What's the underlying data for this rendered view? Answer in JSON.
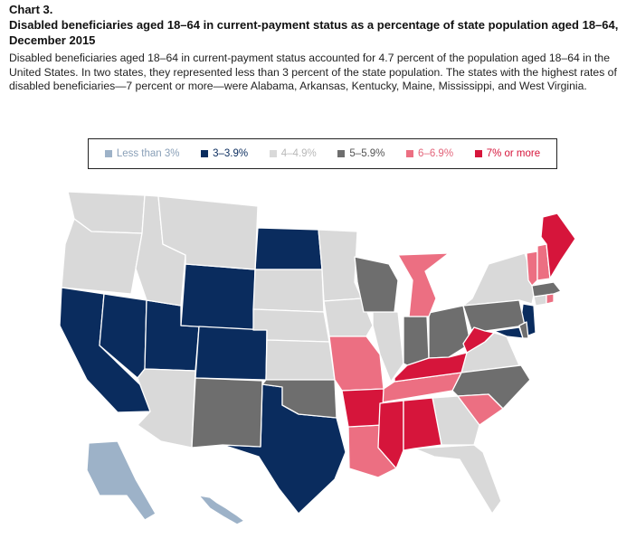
{
  "header": {
    "chart_number": "Chart 3.",
    "title": "Disabled beneficiaries aged 18–64 in current-payment status as a percentage of state population aged 18–64, December 2015",
    "description": "Disabled beneficiaries aged 18–64 in current-payment status accounted for 4.7 percent of the population aged 18–64 in the United States. In two states, they represented less than 3 percent of the state population. The states with the highest rates of disabled beneficiaries—7 percent or more—were Alabama, Arkansas, Kentucky, Maine, Mississippi, and West Virginia."
  },
  "legend": [
    {
      "label": "Less than 3%",
      "color": "#9db2c8",
      "text_color": "#8aa0b8"
    },
    {
      "label": "3–3.9%",
      "color": "#0a2c5e",
      "text_color": "#0a2c5e"
    },
    {
      "label": "4–4.9%",
      "color": "#d9d9d9",
      "text_color": "#b8b8b8"
    },
    {
      "label": "5–5.9%",
      "color": "#6e6e6e",
      "text_color": "#555555"
    },
    {
      "label": "6–6.9%",
      "color": "#ec6f82",
      "text_color": "#e3647a"
    },
    {
      "label": "7% or more",
      "color": "#d6153b",
      "text_color": "#d6153b"
    }
  ],
  "map_data": {
    "classes": {
      "lt3": "#9db2c8",
      "c3": "#0a2c5e",
      "c4": "#d9d9d9",
      "c5": "#6e6e6e",
      "c6": "#ec6f82",
      "c7": "#d6153b"
    },
    "states": [
      {
        "state": "Alaska",
        "class": "lt3"
      },
      {
        "state": "Hawaii",
        "class": "lt3"
      },
      {
        "state": "California",
        "class": "c3"
      },
      {
        "state": "Nevada",
        "class": "c3"
      },
      {
        "state": "Utah",
        "class": "c3"
      },
      {
        "state": "Wyoming",
        "class": "c3"
      },
      {
        "state": "Colorado",
        "class": "c3"
      },
      {
        "state": "North Dakota",
        "class": "c3"
      },
      {
        "state": "Texas",
        "class": "c3"
      },
      {
        "state": "New Jersey",
        "class": "c3"
      },
      {
        "state": "Maryland",
        "class": "c3"
      },
      {
        "state": "Washington",
        "class": "c4"
      },
      {
        "state": "Oregon",
        "class": "c4"
      },
      {
        "state": "Idaho",
        "class": "c4"
      },
      {
        "state": "Montana",
        "class": "c4"
      },
      {
        "state": "Arizona",
        "class": "c4"
      },
      {
        "state": "South Dakota",
        "class": "c4"
      },
      {
        "state": "Nebraska",
        "class": "c4"
      },
      {
        "state": "Kansas",
        "class": "c4"
      },
      {
        "state": "Minnesota",
        "class": "c4"
      },
      {
        "state": "Iowa",
        "class": "c4"
      },
      {
        "state": "Illinois",
        "class": "c4"
      },
      {
        "state": "New York",
        "class": "c4"
      },
      {
        "state": "Virginia",
        "class": "c4"
      },
      {
        "state": "Georgia",
        "class": "c4"
      },
      {
        "state": "Florida",
        "class": "c4"
      },
      {
        "state": "Connecticut",
        "class": "c4"
      },
      {
        "state": "New Mexico",
        "class": "c5"
      },
      {
        "state": "Oklahoma",
        "class": "c5"
      },
      {
        "state": "Wisconsin",
        "class": "c5"
      },
      {
        "state": "Indiana",
        "class": "c5"
      },
      {
        "state": "Ohio",
        "class": "c5"
      },
      {
        "state": "Pennsylvania",
        "class": "c5"
      },
      {
        "state": "North Carolina",
        "class": "c5"
      },
      {
        "state": "Delaware",
        "class": "c5"
      },
      {
        "state": "Massachusetts",
        "class": "c5"
      },
      {
        "state": "Missouri",
        "class": "c6"
      },
      {
        "state": "Louisiana",
        "class": "c6"
      },
      {
        "state": "Tennessee",
        "class": "c6"
      },
      {
        "state": "South Carolina",
        "class": "c6"
      },
      {
        "state": "Michigan",
        "class": "c6"
      },
      {
        "state": "Vermont",
        "class": "c6"
      },
      {
        "state": "New Hampshire",
        "class": "c6"
      },
      {
        "state": "Rhode Island",
        "class": "c6"
      },
      {
        "state": "Arkansas",
        "class": "c7"
      },
      {
        "state": "Mississippi",
        "class": "c7"
      },
      {
        "state": "Alabama",
        "class": "c7"
      },
      {
        "state": "Kentucky",
        "class": "c7"
      },
      {
        "state": "West Virginia",
        "class": "c7"
      },
      {
        "state": "Maine",
        "class": "c7"
      }
    ]
  }
}
